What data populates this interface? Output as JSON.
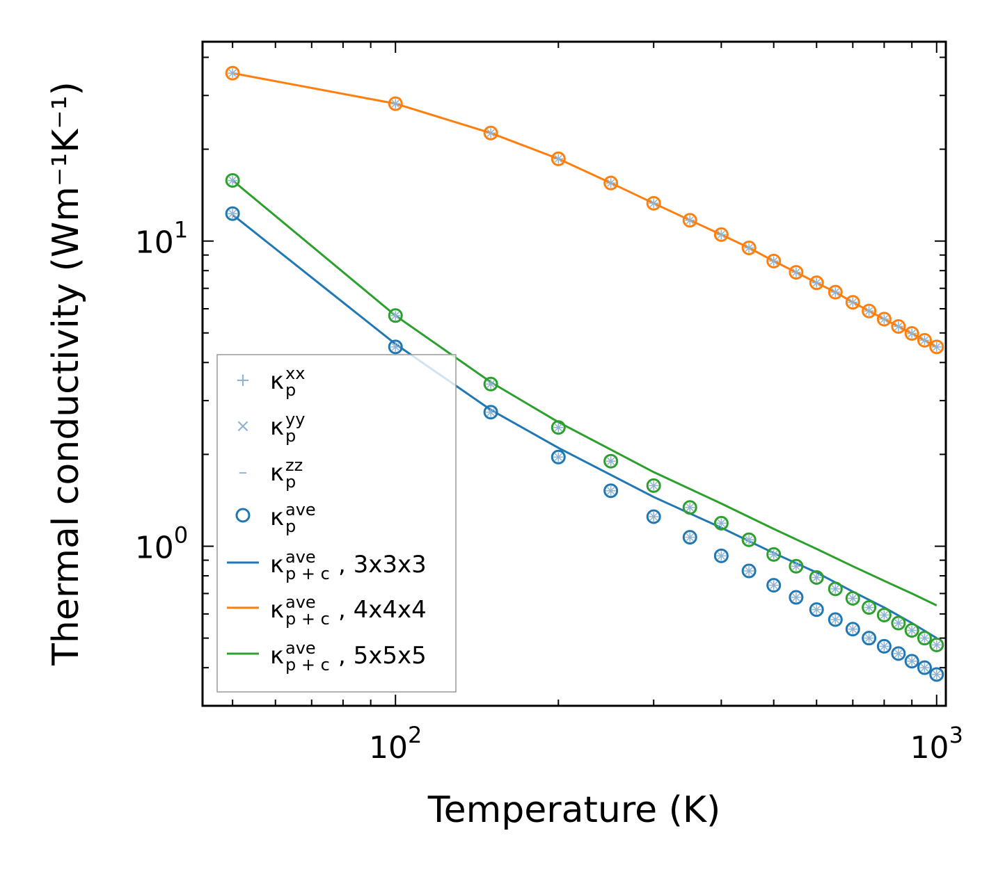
{
  "chart_data": {
    "type": "line",
    "xlabel": "Temperature (K)",
    "ylabel": "Thermal conductivity (Wm⁻¹K⁻¹)",
    "xscale": "log",
    "yscale": "log",
    "xlim": [
      44,
      1040
    ],
    "ylim": [
      0.3,
      45
    ],
    "xticks": [
      {
        "value": 100,
        "base": "10",
        "exp": "2"
      },
      {
        "value": 1000,
        "base": "10",
        "exp": "3"
      }
    ],
    "yticks": [
      {
        "value": 1,
        "base": "10",
        "exp": "0"
      },
      {
        "value": 10,
        "base": "10",
        "exp": "1"
      }
    ],
    "x": [
      50,
      100,
      150,
      200,
      250,
      300,
      350,
      400,
      450,
      500,
      550,
      600,
      650,
      700,
      750,
      800,
      850,
      900,
      950,
      1000
    ],
    "series": [
      {
        "name": "3x3x3",
        "color": "#1f77b4",
        "line_x": [
          50,
          100,
          150,
          200,
          300,
          400,
          500,
          600,
          700,
          800,
          900,
          1000
        ],
        "line": [
          12.2,
          4.6,
          2.8,
          2.1,
          1.45,
          1.15,
          0.95,
          0.82,
          0.71,
          0.63,
          0.56,
          0.5
        ],
        "points": [
          12.3,
          4.5,
          2.75,
          1.96,
          1.52,
          1.25,
          1.07,
          0.93,
          0.83,
          0.745,
          0.68,
          0.62,
          0.575,
          0.535,
          0.5,
          0.47,
          0.445,
          0.42,
          0.4,
          0.38
        ]
      },
      {
        "name": "4x4x4",
        "color": "#ff7f0e",
        "line_x": [
          50,
          100,
          150,
          200,
          250,
          300,
          350,
          400,
          450,
          500,
          550,
          600,
          650,
          700,
          750,
          800,
          850,
          900,
          950,
          1000
        ],
        "line": [
          35.5,
          28.2,
          22.6,
          18.6,
          15.5,
          13.3,
          11.7,
          10.5,
          9.5,
          8.6,
          7.9,
          7.3,
          6.8,
          6.3,
          5.9,
          5.55,
          5.25,
          4.98,
          4.73,
          4.5
        ],
        "points": [
          35.5,
          28.2,
          22.6,
          18.6,
          15.5,
          13.3,
          11.7,
          10.5,
          9.5,
          8.6,
          7.9,
          7.3,
          6.8,
          6.3,
          5.9,
          5.55,
          5.25,
          4.98,
          4.73,
          4.5
        ]
      },
      {
        "name": "5x5x5",
        "color": "#2ca02c",
        "line_x": [
          50,
          100,
          150,
          200,
          300,
          400,
          500,
          600,
          700,
          800,
          900,
          1000
        ],
        "line": [
          15.8,
          5.7,
          3.45,
          2.55,
          1.75,
          1.38,
          1.14,
          0.98,
          0.86,
          0.77,
          0.7,
          0.64
        ],
        "points": [
          15.8,
          5.7,
          3.4,
          2.45,
          1.9,
          1.58,
          1.34,
          1.19,
          1.05,
          0.94,
          0.86,
          0.79,
          0.725,
          0.675,
          0.63,
          0.595,
          0.56,
          0.53,
          0.5,
          0.475
        ]
      }
    ],
    "legend": {
      "position": "lower-left",
      "entries": [
        {
          "marker": "+",
          "symbol": "κ",
          "sub": "p",
          "sup": "xx",
          "suffix": ""
        },
        {
          "marker": "×",
          "symbol": "κ",
          "sub": "p",
          "sup": "yy",
          "suffix": ""
        },
        {
          "marker": "–",
          "symbol": "κ",
          "sub": "p",
          "sup": "zz",
          "suffix": ""
        },
        {
          "marker": "circle",
          "symbol": "κ",
          "sub": "p",
          "sup": "ave",
          "suffix": ""
        },
        {
          "marker": "line",
          "symbol": "κ",
          "sub": "p + c",
          "sup": "ave",
          "suffix": ", 3x3x3"
        },
        {
          "marker": "line",
          "symbol": "κ",
          "sub": "p + c",
          "sup": "ave",
          "suffix": ", 4x4x4"
        },
        {
          "marker": "line",
          "symbol": "κ",
          "sub": "p + c",
          "sup": "ave",
          "suffix": ", 5x5x5"
        }
      ]
    }
  }
}
